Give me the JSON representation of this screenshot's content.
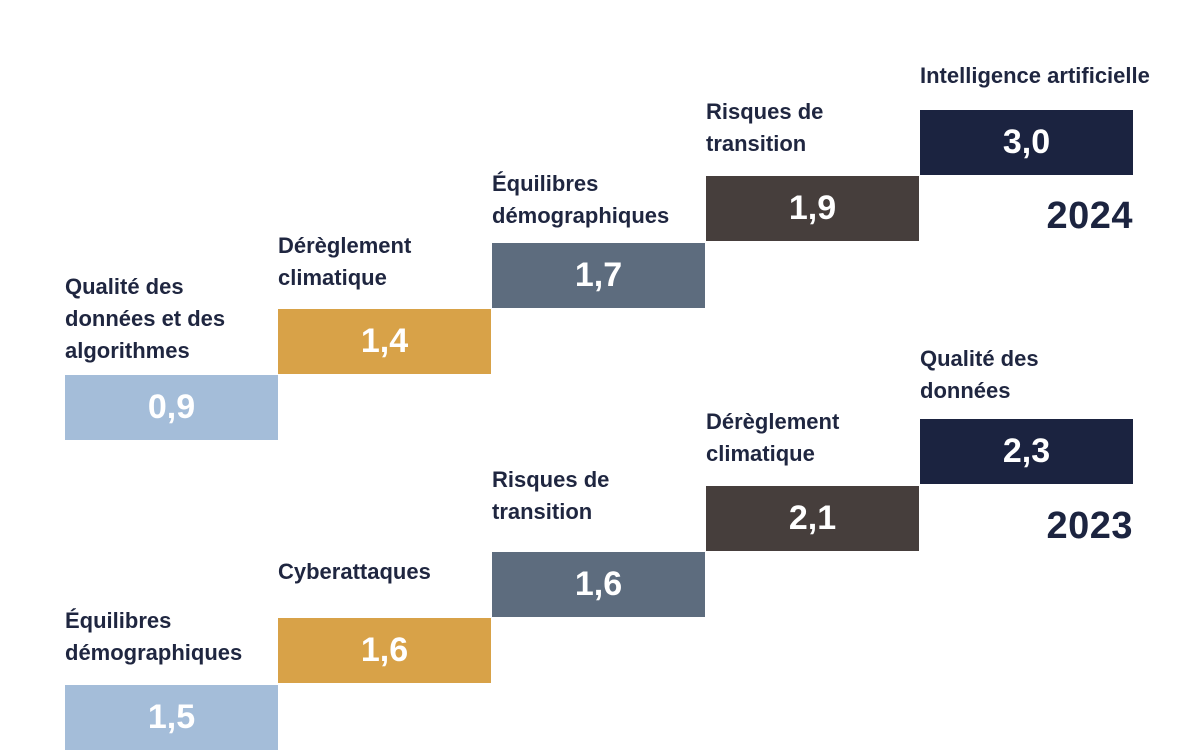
{
  "chart_data": [
    {
      "type": "bar",
      "title": "2024",
      "categories": [
        "Qualité des\ndonnées et des\nalgorithmes",
        "Dérèglement\nclimatique",
        "Équilibres\ndémographiques",
        "Risques de\ntransition",
        "Intelligence artificielle"
      ],
      "values": [
        0.9,
        1.4,
        1.7,
        1.9,
        3.0
      ],
      "value_labels": [
        "0,9",
        "1,4",
        "1,7",
        "1,9",
        "3,0"
      ],
      "colors": [
        "#a4bdd9",
        "#d8a248",
        "#5d6c7e",
        "#463e3c",
        "#1b2340"
      ]
    },
    {
      "type": "bar",
      "title": "2023",
      "categories": [
        "Équilibres\ndémographiques",
        "Cyberattaques",
        "Risques de\ntransition",
        "Dérèglement\nclimatique",
        "Qualité des\ndonnées"
      ],
      "values": [
        1.5,
        1.6,
        1.6,
        2.1,
        2.3
      ],
      "value_labels": [
        "1,5",
        "1,6",
        "1,6",
        "2,1",
        "2,3"
      ],
      "colors": [
        "#a4bdd9",
        "#d8a248",
        "#5d6c7e",
        "#463e3c",
        "#1b2340"
      ]
    }
  ]
}
